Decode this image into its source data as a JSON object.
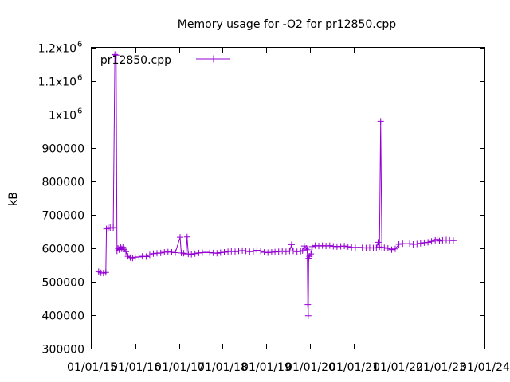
{
  "chart_data": {
    "type": "line",
    "title": "Memory usage for -O2 for pr12850.cpp",
    "xlabel": "",
    "ylabel": "kB",
    "ylim": [
      300000,
      1200000
    ],
    "xlim": [
      "2015-01-01",
      "2024-01-01"
    ],
    "yticks": [
      {
        "value": 300000,
        "base": "300000"
      },
      {
        "value": 400000,
        "base": "400000"
      },
      {
        "value": 500000,
        "base": "500000"
      },
      {
        "value": 600000,
        "base": "600000"
      },
      {
        "value": 700000,
        "base": "700000"
      },
      {
        "value": 800000,
        "base": "800000"
      },
      {
        "value": 900000,
        "base": "900000"
      },
      {
        "value": 1000000,
        "base": "1x10",
        "exp": "6"
      },
      {
        "value": 1100000,
        "base": "1.1x10",
        "exp": "6"
      },
      {
        "value": 1200000,
        "base": "1.2x10",
        "exp": "6"
      }
    ],
    "xticks": [
      {
        "value": "2015-01-01",
        "label": "01/01/15"
      },
      {
        "value": "2016-01-01",
        "label": "01/01/16"
      },
      {
        "value": "2017-01-01",
        "label": "01/01/17"
      },
      {
        "value": "2018-01-01",
        "label": "01/01/18"
      },
      {
        "value": "2019-01-01",
        "label": "01/01/19"
      },
      {
        "value": "2020-01-01",
        "label": "01/01/20"
      },
      {
        "value": "2021-01-01",
        "label": "01/01/21"
      },
      {
        "value": "2022-01-01",
        "label": "01/01/22"
      },
      {
        "value": "2023-01-01",
        "label": "01/01/23"
      },
      {
        "value": "2024-01-01",
        "label": "01/01/24"
      }
    ],
    "grid": false,
    "legend": {
      "placement": "top-left"
    },
    "series": [
      {
        "name": "pr12850.cpp",
        "color": "#9400d3",
        "points": [
          [
            "2015-03-01",
            530000
          ],
          [
            "2015-03-20",
            527000
          ],
          [
            "2015-04-10",
            526000
          ],
          [
            "2015-04-30",
            528000
          ],
          [
            "2015-05-05",
            658000
          ],
          [
            "2015-05-20",
            661000
          ],
          [
            "2015-06-05",
            662000
          ],
          [
            "2015-06-20",
            660000
          ],
          [
            "2015-07-01",
            662000
          ],
          [
            "2015-07-15",
            1180000
          ],
          [
            "2015-07-25",
            1178000
          ],
          [
            "2015-08-01",
            592000
          ],
          [
            "2015-08-10",
            600000
          ],
          [
            "2015-08-20",
            596000
          ],
          [
            "2015-09-01",
            604000
          ],
          [
            "2015-09-10",
            598000
          ],
          [
            "2015-09-20",
            603000
          ],
          [
            "2015-10-01",
            597000
          ],
          [
            "2015-10-15",
            590000
          ],
          [
            "2015-11-01",
            576000
          ],
          [
            "2015-11-20",
            572000
          ],
          [
            "2015-12-10",
            571000
          ],
          [
            "2016-01-01",
            573000
          ],
          [
            "2016-02-01",
            574000
          ],
          [
            "2016-03-01",
            576000
          ],
          [
            "2016-04-01",
            575000
          ],
          [
            "2016-05-01",
            580000
          ],
          [
            "2016-06-01",
            584000
          ],
          [
            "2016-07-01",
            585000
          ],
          [
            "2016-08-01",
            586000
          ],
          [
            "2016-09-01",
            588000
          ],
          [
            "2016-10-01",
            589000
          ],
          [
            "2016-11-01",
            588000
          ],
          [
            "2016-12-01",
            587000
          ],
          [
            "2017-01-10",
            633000
          ],
          [
            "2017-01-20",
            586000
          ],
          [
            "2017-02-10",
            585000
          ],
          [
            "2017-03-01",
            583000
          ],
          [
            "2017-03-10",
            634000
          ],
          [
            "2017-03-20",
            583000
          ],
          [
            "2017-04-15",
            582000
          ],
          [
            "2017-05-15",
            584000
          ],
          [
            "2017-06-15",
            586000
          ],
          [
            "2017-07-15",
            587000
          ],
          [
            "2017-08-15",
            588000
          ],
          [
            "2017-09-15",
            587000
          ],
          [
            "2017-10-15",
            586000
          ],
          [
            "2017-11-15",
            585000
          ],
          [
            "2017-12-15",
            587000
          ],
          [
            "2018-01-15",
            588000
          ],
          [
            "2018-02-15",
            590000
          ],
          [
            "2018-03-15",
            591000
          ],
          [
            "2018-04-15",
            590000
          ],
          [
            "2018-05-15",
            592000
          ],
          [
            "2018-06-15",
            593000
          ],
          [
            "2018-07-15",
            592000
          ],
          [
            "2018-08-15",
            590000
          ],
          [
            "2018-09-15",
            591000
          ],
          [
            "2018-10-15",
            594000
          ],
          [
            "2018-11-15",
            592000
          ],
          [
            "2018-12-15",
            588000
          ],
          [
            "2019-01-15",
            587000
          ],
          [
            "2019-02-15",
            588000
          ],
          [
            "2019-03-15",
            589000
          ],
          [
            "2019-04-15",
            590000
          ],
          [
            "2019-05-15",
            592000
          ],
          [
            "2019-06-15",
            590000
          ],
          [
            "2019-07-15",
            592000
          ],
          [
            "2019-08-01",
            611000
          ],
          [
            "2019-08-15",
            592000
          ],
          [
            "2019-09-15",
            590000
          ],
          [
            "2019-10-15",
            591000
          ],
          [
            "2019-11-01",
            593000
          ],
          [
            "2019-11-15",
            607000
          ],
          [
            "2019-12-01",
            600000
          ],
          [
            "2019-12-10",
            596000
          ],
          [
            "2019-12-15",
            432000
          ],
          [
            "2019-12-18",
            398000
          ],
          [
            "2019-12-22",
            570000
          ],
          [
            "2019-12-28",
            576000
          ],
          [
            "2020-01-10",
            583000
          ],
          [
            "2020-01-20",
            605000
          ],
          [
            "2020-02-15",
            608000
          ],
          [
            "2020-03-15",
            607000
          ],
          [
            "2020-04-15",
            608000
          ],
          [
            "2020-05-15",
            607000
          ],
          [
            "2020-06-15",
            608000
          ],
          [
            "2020-07-15",
            606000
          ],
          [
            "2020-08-15",
            605000
          ],
          [
            "2020-09-15",
            606000
          ],
          [
            "2020-10-15",
            607000
          ],
          [
            "2020-11-15",
            605000
          ],
          [
            "2020-12-15",
            603000
          ],
          [
            "2021-01-15",
            602000
          ],
          [
            "2021-02-15",
            603000
          ],
          [
            "2021-03-15",
            602000
          ],
          [
            "2021-04-15",
            601000
          ],
          [
            "2021-05-15",
            602000
          ],
          [
            "2021-06-15",
            601000
          ],
          [
            "2021-07-10",
            602000
          ],
          [
            "2021-07-25",
            618000
          ],
          [
            "2021-08-05",
            604000
          ],
          [
            "2021-08-15",
            980000
          ],
          [
            "2021-08-25",
            603000
          ],
          [
            "2021-09-15",
            602000
          ],
          [
            "2021-10-15",
            600000
          ],
          [
            "2021-11-15",
            596000
          ],
          [
            "2021-12-15",
            598000
          ],
          [
            "2022-01-15",
            612000
          ],
          [
            "2022-02-15",
            614000
          ],
          [
            "2022-03-15",
            613000
          ],
          [
            "2022-04-15",
            614000
          ],
          [
            "2022-05-15",
            612000
          ],
          [
            "2022-06-15",
            613000
          ],
          [
            "2022-07-15",
            615000
          ],
          [
            "2022-08-15",
            617000
          ],
          [
            "2022-09-15",
            618000
          ],
          [
            "2022-10-15",
            621000
          ],
          [
            "2022-11-15",
            624000
          ],
          [
            "2022-12-01",
            627000
          ],
          [
            "2022-12-20",
            622000
          ],
          [
            "2023-01-15",
            624000
          ],
          [
            "2023-02-15",
            625000
          ],
          [
            "2023-03-15",
            624000
          ],
          [
            "2023-04-15",
            623000
          ]
        ]
      }
    ]
  }
}
